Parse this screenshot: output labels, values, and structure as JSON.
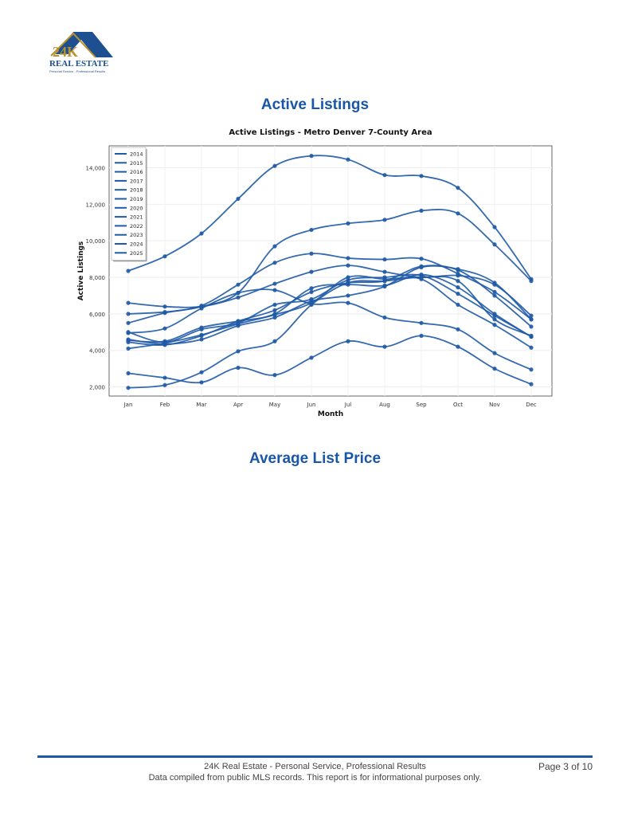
{
  "logo": {
    "text": "24K REAL ESTATE",
    "tagline": "Personal Service - Professional Results",
    "colors": {
      "gold": "#b8922e",
      "blue": "#1d4f91"
    }
  },
  "sections": [
    {
      "title": "Active Listings"
    },
    {
      "title": "Average List Price"
    }
  ],
  "chart_data": {
    "type": "line",
    "title": "Active Listings - Metro Denver 7-County Area",
    "xlabel": "Month",
    "ylabel": "Active Listings",
    "categories": [
      "Jan",
      "Feb",
      "Mar",
      "Apr",
      "May",
      "Jun",
      "Jul",
      "Aug",
      "Sep",
      "Oct",
      "Nov",
      "Dec"
    ],
    "ylim": [
      1500,
      15200
    ],
    "yticks": [
      2000,
      4000,
      6000,
      8000,
      10000,
      12000,
      14000
    ],
    "ytick_labels": [
      "2,000",
      "4,000",
      "6,000",
      "8,000",
      "10,000",
      "12,000",
      "14,000"
    ],
    "grid": true,
    "legend_placement": "top-left",
    "line_color": "#1f5aa6",
    "series": [
      {
        "name": "2014",
        "values": [
          6600,
          6400,
          6400,
          6900,
          7650,
          8300,
          8650,
          8300,
          8000,
          8100,
          7600,
          5900
        ]
      },
      {
        "name": "2015",
        "values": [
          4950,
          5200,
          6300,
          7150,
          7300,
          6550,
          6600,
          5800,
          5500,
          5150,
          3850,
          2950
        ]
      },
      {
        "name": "2016",
        "values": [
          4550,
          4500,
          5250,
          5600,
          6000,
          7400,
          7600,
          7550,
          8150,
          7450,
          6000,
          4750
        ]
      },
      {
        "name": "2017",
        "values": [
          4450,
          4300,
          4800,
          5600,
          6200,
          7200,
          7700,
          7800,
          8600,
          8400,
          7000,
          5300
        ]
      },
      {
        "name": "2018",
        "values": [
          4600,
          4350,
          4600,
          5350,
          5800,
          6700,
          7000,
          7500,
          8550,
          8450,
          7700,
          5700
        ]
      },
      {
        "name": "2019",
        "values": [
          5000,
          4450,
          5150,
          5500,
          6500,
          6800,
          7850,
          8000,
          8100,
          7100,
          5900,
          4750
        ]
      },
      {
        "name": "2020",
        "values": [
          4100,
          4400,
          4850,
          5450,
          5950,
          6600,
          8000,
          7900,
          7900,
          6500,
          5400,
          4150
        ]
      },
      {
        "name": "2021",
        "values": [
          2750,
          2500,
          2250,
          3050,
          2650,
          3600,
          4500,
          4200,
          4800,
          4200,
          3000,
          2150
        ]
      },
      {
        "name": "2022",
        "values": [
          1950,
          2100,
          2800,
          3950,
          4500,
          6500,
          7700,
          7800,
          8000,
          7800,
          5700,
          4800
        ]
      },
      {
        "name": "2023",
        "values": [
          5500,
          6050,
          6450,
          7600,
          8800,
          9300,
          9050,
          8980,
          9020,
          8200,
          7200,
          5700
        ]
      },
      {
        "name": "2024",
        "values": [
          6000,
          6100,
          6400,
          7150,
          9700,
          10600,
          10950,
          11150,
          11650,
          11500,
          9800,
          7800
        ]
      },
      {
        "name": "2025",
        "values": [
          8350,
          9150,
          10400,
          12300,
          14100,
          14650,
          14450,
          13600,
          13550,
          12900,
          10750,
          7900
        ]
      }
    ]
  },
  "footer": {
    "line1": "24K Real Estate - Personal Service, Professional Results",
    "line2": "Data compiled from public MLS records. This report is for informational purposes only.",
    "page": "Page 3 of 10"
  }
}
